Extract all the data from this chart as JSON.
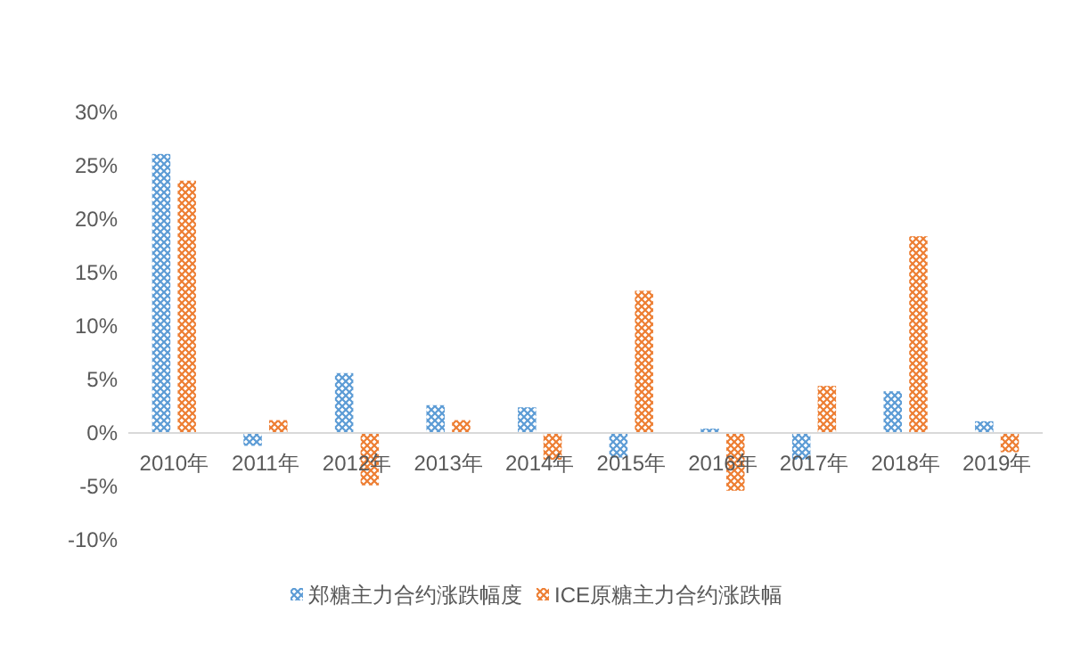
{
  "chart_data": {
    "type": "bar",
    "categories": [
      "2010年",
      "2011年",
      "2012年",
      "2013年",
      "2014年",
      "2015年",
      "2016年",
      "2017年",
      "2018年",
      "2019年"
    ],
    "series": [
      {
        "name": "郑糖主力合约涨跌幅度",
        "color": "#5b9bd5",
        "values": [
          26.1,
          -1.2,
          5.6,
          2.6,
          2.4,
          -2.3,
          0.4,
          -2.5,
          3.9,
          1.1
        ]
      },
      {
        "name": "ICE原糖主力合约涨跌幅",
        "color": "#ed7d31",
        "values": [
          23.6,
          1.2,
          -4.9,
          1.2,
          -2.5,
          13.3,
          -5.4,
          4.4,
          18.4,
          -1.8
        ]
      }
    ],
    "ylim": [
      -10,
      30
    ],
    "yticks": [
      {
        "value": -10,
        "label": "-10%"
      },
      {
        "value": -5,
        "label": "-5%"
      },
      {
        "value": 0,
        "label": "0%"
      },
      {
        "value": 5,
        "label": "5%"
      },
      {
        "value": 10,
        "label": "10%"
      },
      {
        "value": 15,
        "label": "15%"
      },
      {
        "value": 20,
        "label": "20%"
      },
      {
        "value": 25,
        "label": "25%"
      },
      {
        "value": 30,
        "label": "30%"
      }
    ],
    "grid": false,
    "legend": "bottom"
  }
}
